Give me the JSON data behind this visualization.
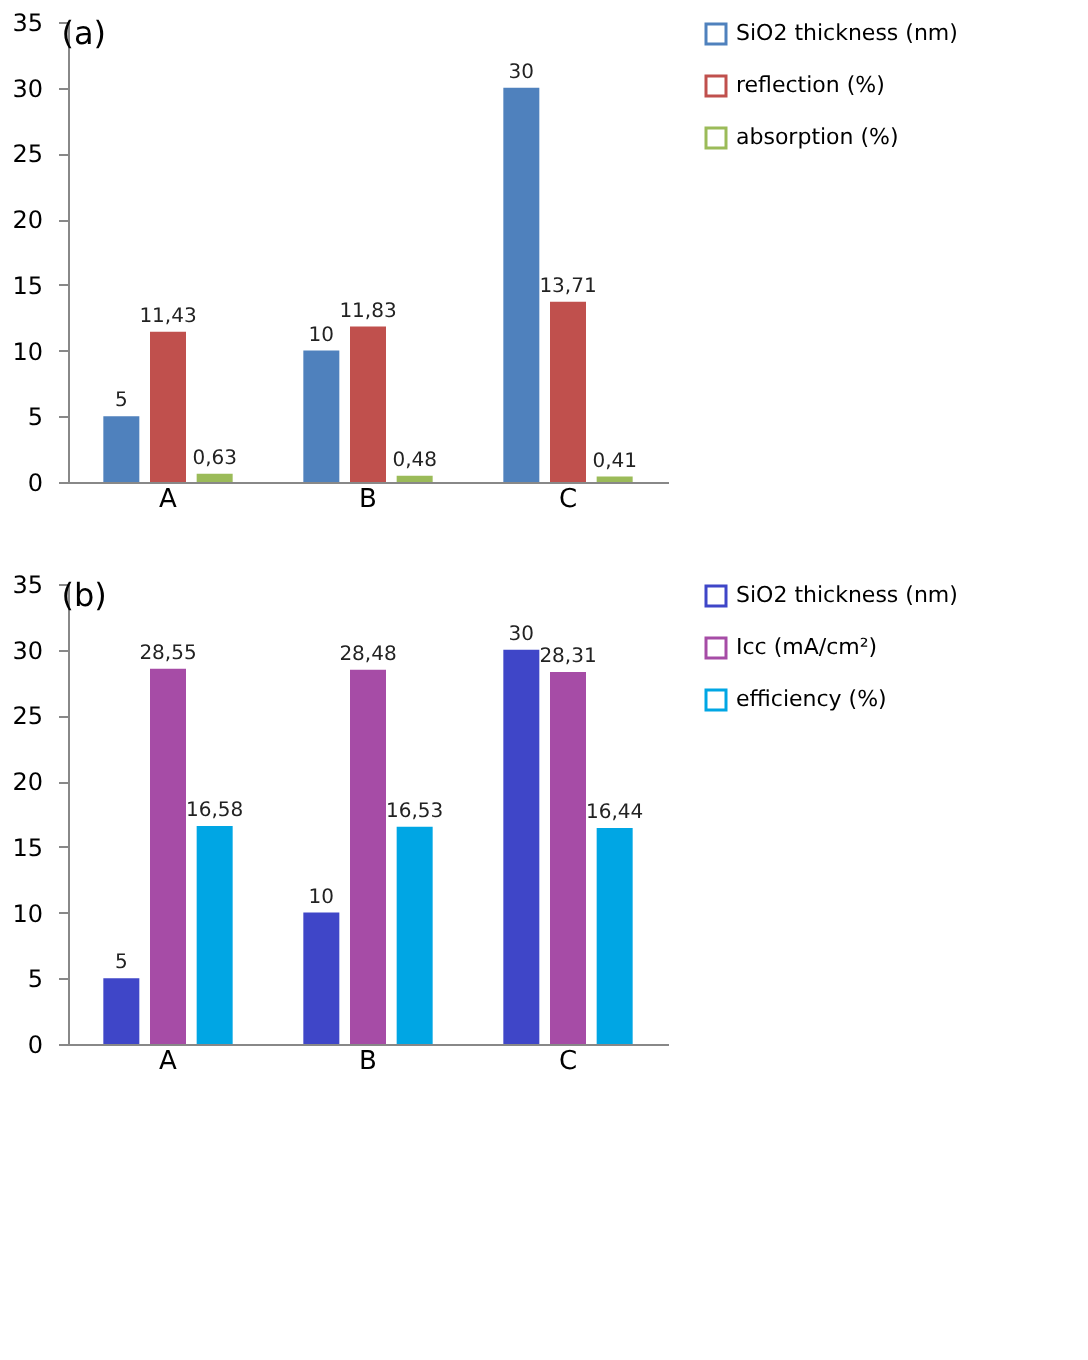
{
  "chart_data": [
    {
      "type": "bar",
      "title": "(a)",
      "categories": [
        "A",
        "B",
        "C"
      ],
      "ylim": [
        0,
        35
      ],
      "yticks": [
        0,
        5,
        10,
        15,
        20,
        25,
        30,
        35
      ],
      "grid": false,
      "legend": "right",
      "series": [
        {
          "name": "SiO2 thickness  (nm)",
          "color": "#4f81bd",
          "values": [
            5,
            10,
            30
          ],
          "value_labels": [
            "5",
            "10",
            "30"
          ]
        },
        {
          "name": "reflection (%)",
          "color": "#c0504d",
          "values": [
            11.43,
            11.83,
            13.71
          ],
          "value_labels": [
            "11,43",
            "11,83",
            "13,71"
          ]
        },
        {
          "name": "absorption (%)",
          "color": "#9bbb59",
          "values": [
            0.63,
            0.48,
            0.41
          ],
          "value_labels": [
            "0,63",
            "0,48",
            "0,41"
          ]
        }
      ]
    },
    {
      "type": "bar",
      "title": "(b)",
      "categories": [
        "A",
        "B",
        "C"
      ],
      "ylim": [
        0,
        35
      ],
      "yticks": [
        0,
        5,
        10,
        15,
        20,
        25,
        30,
        35
      ],
      "grid": false,
      "legend": "right",
      "series": [
        {
          "name": "SiO2 thickness  (nm)",
          "color": "#3f46c8",
          "values": [
            5,
            10,
            30
          ],
          "value_labels": [
            "5",
            "10",
            "30"
          ]
        },
        {
          "name": "Icc  (mA/cm²)",
          "color": "#a64ca6",
          "values": [
            28.55,
            28.48,
            28.31
          ],
          "value_labels": [
            "28,55",
            "28,48",
            "28,31"
          ]
        },
        {
          "name": "efficiency (%)",
          "color": "#00a6e4",
          "values": [
            16.58,
            16.53,
            16.44
          ],
          "value_labels": [
            "16,58",
            "16,53",
            "16,44"
          ]
        }
      ]
    }
  ]
}
